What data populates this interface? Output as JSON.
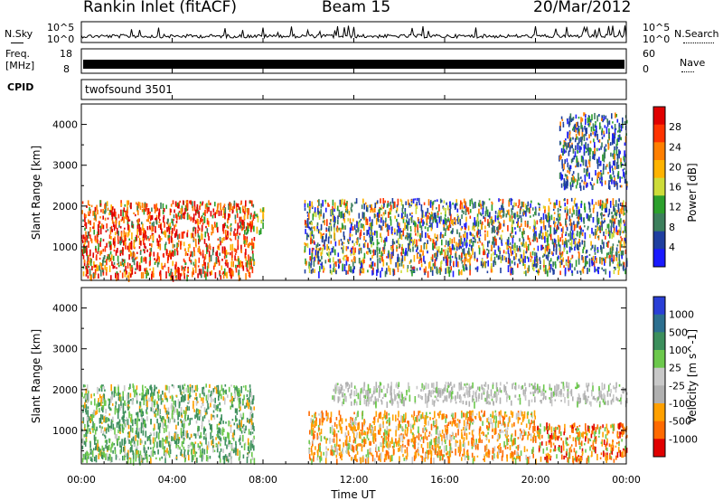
{
  "header": {
    "station": "Rankin Inlet (fitACF)",
    "beam": "Beam 15",
    "date": "20/Mar/2012"
  },
  "noise_panel": {
    "left_label": "N.Sky",
    "right_label": "N.Search",
    "left_ticks": [
      "10^5",
      "10^0"
    ],
    "right_ticks": [
      "10^5",
      "10^0"
    ]
  },
  "freq_panel": {
    "left_label_1": "Freq.",
    "left_label_2": "[MHz]",
    "right_label": "Nave",
    "left_ticks": [
      "18",
      "8"
    ],
    "right_ticks": [
      "60",
      "0"
    ]
  },
  "cpid": {
    "label": "CPID",
    "value": "twofsound 3501"
  },
  "time_axis": {
    "title": "Time UT",
    "ticks": [
      "00:00",
      "04:00",
      "08:00",
      "12:00",
      "16:00",
      "20:00",
      "00:00"
    ]
  },
  "colors": {
    "power": [
      "#1a1aff",
      "#1f3fa0",
      "#3c7f5c",
      "#2ca02c",
      "#cddc39",
      "#ffb300",
      "#ff7f00",
      "#ff3300",
      "#e00000"
    ],
    "velocity": [
      "#2a3fd6",
      "#2c6f8f",
      "#3c8f5c",
      "#6cc84c",
      "#c8c8c8",
      "#b0b0b0",
      "#ffa000",
      "#ff6a00",
      "#e00000"
    ]
  },
  "chart_data": [
    {
      "type": "heatmap",
      "ylabel": "Slant Range [km]",
      "xlabel": "Time UT",
      "xlim": [
        "00:00",
        "24:00"
      ],
      "ylim": [
        180,
        4500
      ],
      "yticks": [
        1000,
        2000,
        3000,
        4000
      ],
      "colorbar": {
        "label": "Power [dB]",
        "ticks": [
          "28",
          "24",
          "20",
          "16",
          "12",
          "8",
          "4"
        ],
        "range": [
          0,
          32
        ]
      },
      "regions": [
        {
          "t": [
            0.0,
            7.6
          ],
          "r": [
            300,
            2150
          ],
          "level": "high (20-30 dB)"
        },
        {
          "t": [
            7.6,
            8.0
          ],
          "r": [
            1400,
            2000
          ],
          "level": "medium"
        },
        {
          "t": [
            9.8,
            24.0
          ],
          "r": [
            400,
            2200
          ],
          "level": "low-medium (4-20 dB)"
        },
        {
          "t": [
            21.0,
            24.0
          ],
          "r": [
            2500,
            4300
          ],
          "level": "low (4-12 dB)"
        }
      ]
    },
    {
      "type": "heatmap",
      "ylabel": "Slant Range [km]",
      "xlabel": "Time UT",
      "xlim": [
        "00:00",
        "24:00"
      ],
      "ylim": [
        180,
        4500
      ],
      "yticks": [
        1000,
        2000,
        3000,
        4000
      ],
      "colorbar": {
        "label": "Velocity [m s^-1]",
        "ticks": [
          "1000",
          "500",
          "100",
          "25",
          "-25",
          "-100",
          "-500",
          "-1000"
        ]
      },
      "regions": [
        {
          "t": [
            0.0,
            7.6
          ],
          "r": [
            300,
            2150
          ],
          "level": "positive (100-500 m/s)"
        },
        {
          "t": [
            10.0,
            20.0
          ],
          "r": [
            300,
            1500
          ],
          "level": "negative (-100 to -500 m/s)"
        },
        {
          "t": [
            11.0,
            24.0
          ],
          "r": [
            1700,
            2200
          ],
          "level": "near zero (ground scatter)"
        },
        {
          "t": [
            20.0,
            24.0
          ],
          "r": [
            300,
            1200
          ],
          "level": "negative (-100 to -1000 m/s)"
        }
      ]
    }
  ]
}
